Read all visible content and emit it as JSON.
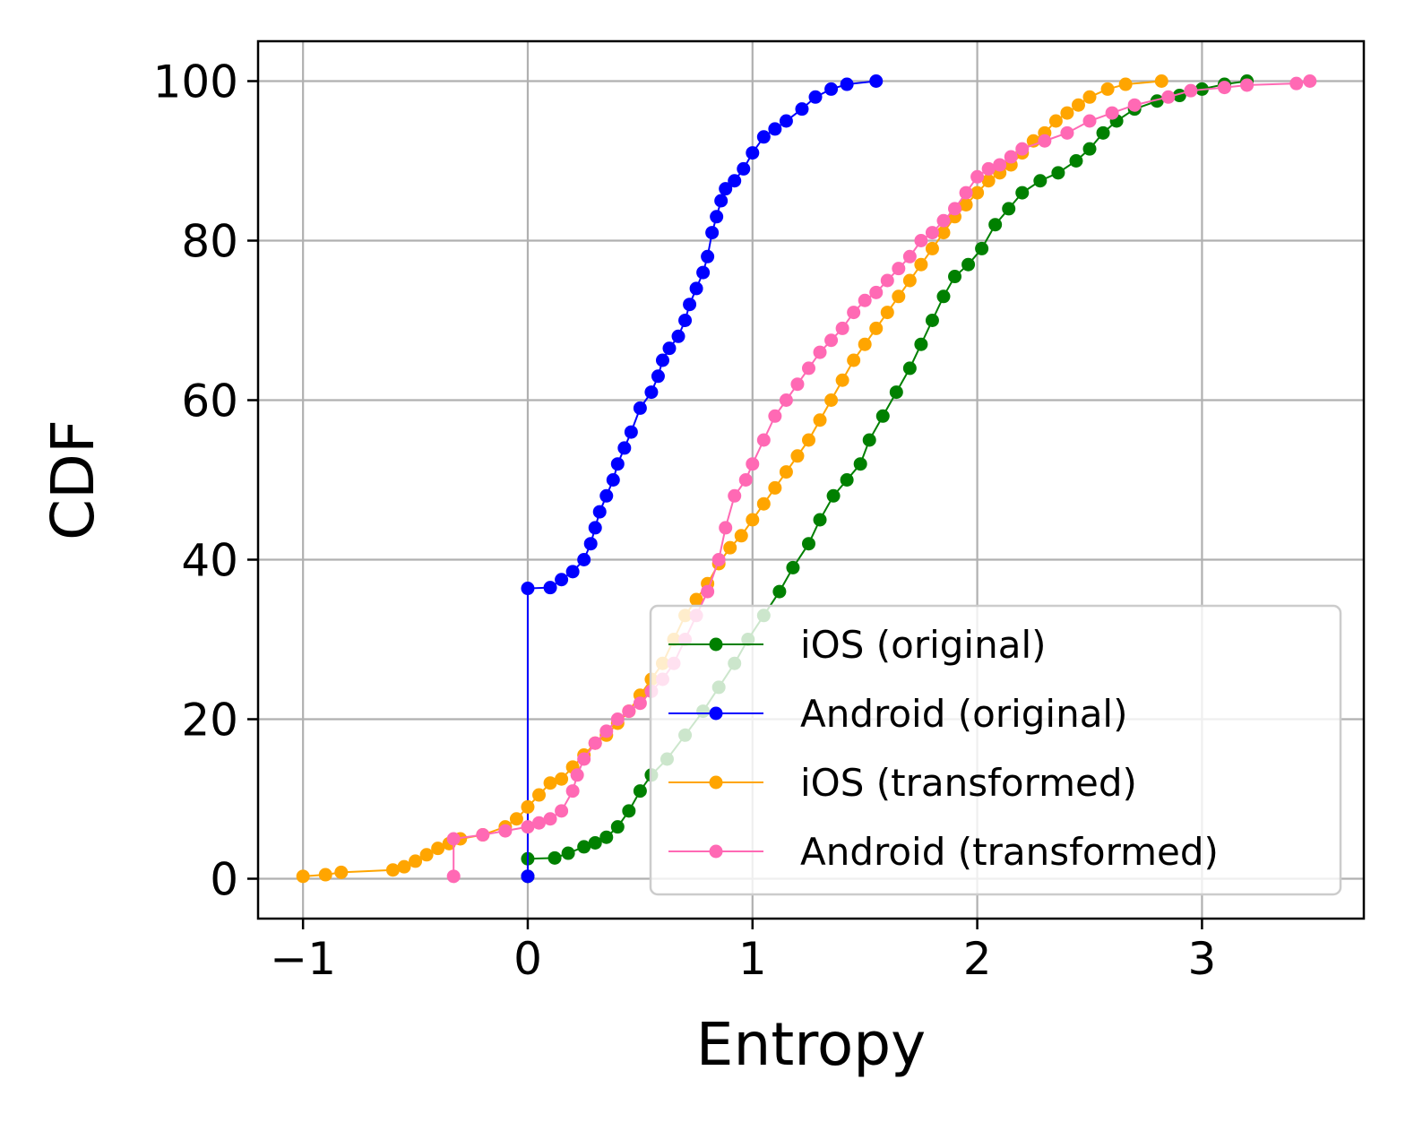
{
  "chart_data": {
    "type": "line",
    "xlabel": "Entropy",
    "ylabel": "CDF",
    "xlim": [
      -1.2,
      3.72
    ],
    "ylim": [
      -5,
      105
    ],
    "xticks": [
      -1,
      0,
      1,
      2,
      3
    ],
    "xtick_labels": [
      "−1",
      "0",
      "1",
      "2",
      "3"
    ],
    "yticks": [
      0,
      20,
      40,
      60,
      80,
      100
    ],
    "ytick_labels": [
      "0",
      "20",
      "40",
      "60",
      "80",
      "100"
    ],
    "grid": true,
    "legend_position": "lower-right",
    "series": [
      {
        "name": "iOS (original)",
        "color": "#008000",
        "points": [
          [
            0,
            0.3
          ],
          [
            0,
            2.5
          ],
          [
            0.12,
            2.6
          ],
          [
            0.18,
            3.2
          ],
          [
            0.25,
            4.0
          ],
          [
            0.3,
            4.5
          ],
          [
            0.35,
            5.2
          ],
          [
            0.4,
            6.5
          ],
          [
            0.45,
            8.5
          ],
          [
            0.5,
            11.0
          ],
          [
            0.55,
            13.0
          ],
          [
            0.62,
            15.0
          ],
          [
            0.7,
            18.0
          ],
          [
            0.78,
            21.0
          ],
          [
            0.85,
            24.0
          ],
          [
            0.92,
            27.0
          ],
          [
            0.98,
            30.0
          ],
          [
            1.05,
            33.0
          ],
          [
            1.12,
            36.0
          ],
          [
            1.18,
            39.0
          ],
          [
            1.25,
            42.0
          ],
          [
            1.3,
            45.0
          ],
          [
            1.36,
            48.0
          ],
          [
            1.42,
            50.0
          ],
          [
            1.48,
            52.0
          ],
          [
            1.52,
            55.0
          ],
          [
            1.58,
            58.0
          ],
          [
            1.64,
            61.0
          ],
          [
            1.7,
            64.0
          ],
          [
            1.75,
            67.0
          ],
          [
            1.8,
            70.0
          ],
          [
            1.85,
            73.0
          ],
          [
            1.9,
            75.5
          ],
          [
            1.96,
            77.0
          ],
          [
            2.02,
            79.0
          ],
          [
            2.08,
            82.0
          ],
          [
            2.14,
            84.0
          ],
          [
            2.2,
            86.0
          ],
          [
            2.28,
            87.5
          ],
          [
            2.36,
            88.5
          ],
          [
            2.44,
            90.0
          ],
          [
            2.5,
            91.5
          ],
          [
            2.56,
            93.5
          ],
          [
            2.62,
            95.0
          ],
          [
            2.7,
            96.5
          ],
          [
            2.8,
            97.5
          ],
          [
            2.9,
            98.2
          ],
          [
            3.0,
            99.0
          ],
          [
            3.1,
            99.6
          ],
          [
            3.2,
            100
          ]
        ]
      },
      {
        "name": "Android (original)",
        "color": "#0000ff",
        "points": [
          [
            0,
            0.3
          ],
          [
            0,
            36.4
          ],
          [
            0.1,
            36.5
          ],
          [
            0.15,
            37.5
          ],
          [
            0.2,
            38.5
          ],
          [
            0.25,
            40.0
          ],
          [
            0.28,
            42.0
          ],
          [
            0.3,
            44.0
          ],
          [
            0.32,
            46.0
          ],
          [
            0.35,
            48.0
          ],
          [
            0.38,
            50.0
          ],
          [
            0.4,
            52.0
          ],
          [
            0.43,
            54.0
          ],
          [
            0.46,
            56.0
          ],
          [
            0.5,
            59.0
          ],
          [
            0.55,
            61.0
          ],
          [
            0.58,
            63.0
          ],
          [
            0.6,
            65.0
          ],
          [
            0.63,
            66.5
          ],
          [
            0.67,
            68.0
          ],
          [
            0.7,
            70.0
          ],
          [
            0.72,
            72.0
          ],
          [
            0.75,
            74.0
          ],
          [
            0.78,
            76.0
          ],
          [
            0.8,
            78.0
          ],
          [
            0.82,
            81.0
          ],
          [
            0.84,
            83.0
          ],
          [
            0.86,
            85.0
          ],
          [
            0.88,
            86.5
          ],
          [
            0.92,
            87.5
          ],
          [
            0.96,
            89.0
          ],
          [
            1.0,
            91.0
          ],
          [
            1.05,
            93.0
          ],
          [
            1.1,
            94.0
          ],
          [
            1.15,
            95.0
          ],
          [
            1.22,
            96.5
          ],
          [
            1.28,
            98.0
          ],
          [
            1.35,
            99.0
          ],
          [
            1.42,
            99.6
          ],
          [
            1.55,
            100
          ]
        ]
      },
      {
        "name": "iOS (transformed)",
        "color": "#ffa500",
        "points": [
          [
            -1,
            0.3
          ],
          [
            -0.9,
            0.5
          ],
          [
            -0.83,
            0.8
          ],
          [
            -0.6,
            1.1
          ],
          [
            -0.55,
            1.5
          ],
          [
            -0.5,
            2.2
          ],
          [
            -0.45,
            3.0
          ],
          [
            -0.4,
            3.8
          ],
          [
            -0.35,
            4.4
          ],
          [
            -0.3,
            5.0
          ],
          [
            -0.2,
            5.5
          ],
          [
            -0.1,
            6.5
          ],
          [
            -0.05,
            7.5
          ],
          [
            0,
            9.0
          ],
          [
            0.05,
            10.5
          ],
          [
            0.1,
            12.0
          ],
          [
            0.15,
            12.5
          ],
          [
            0.2,
            14.0
          ],
          [
            0.25,
            15.5
          ],
          [
            0.3,
            17.0
          ],
          [
            0.35,
            18.0
          ],
          [
            0.4,
            19.5
          ],
          [
            0.45,
            21.0
          ],
          [
            0.5,
            23.0
          ],
          [
            0.55,
            25.0
          ],
          [
            0.6,
            27.0
          ],
          [
            0.65,
            30.0
          ],
          [
            0.7,
            33.0
          ],
          [
            0.75,
            35.0
          ],
          [
            0.8,
            37.0
          ],
          [
            0.85,
            39.5
          ],
          [
            0.9,
            41.5
          ],
          [
            0.95,
            43.0
          ],
          [
            1.0,
            45.0
          ],
          [
            1.05,
            47.0
          ],
          [
            1.1,
            49.0
          ],
          [
            1.15,
            51.0
          ],
          [
            1.2,
            53.0
          ],
          [
            1.25,
            55.0
          ],
          [
            1.3,
            57.5
          ],
          [
            1.35,
            60.0
          ],
          [
            1.4,
            62.5
          ],
          [
            1.45,
            65.0
          ],
          [
            1.5,
            67.0
          ],
          [
            1.55,
            69.0
          ],
          [
            1.6,
            71.0
          ],
          [
            1.65,
            73.0
          ],
          [
            1.7,
            75.0
          ],
          [
            1.75,
            77.0
          ],
          [
            1.8,
            79.0
          ],
          [
            1.85,
            81.0
          ],
          [
            1.9,
            83.0
          ],
          [
            1.95,
            84.5
          ],
          [
            2.0,
            86.0
          ],
          [
            2.05,
            87.5
          ],
          [
            2.1,
            88.5
          ],
          [
            2.15,
            89.5
          ],
          [
            2.2,
            91.0
          ],
          [
            2.25,
            92.5
          ],
          [
            2.3,
            93.5
          ],
          [
            2.35,
            95.0
          ],
          [
            2.4,
            96.0
          ],
          [
            2.45,
            97.0
          ],
          [
            2.5,
            98.0
          ],
          [
            2.58,
            99.0
          ],
          [
            2.66,
            99.6
          ],
          [
            2.82,
            100
          ]
        ]
      },
      {
        "name": "Android (transformed)",
        "color": "#ff69b4",
        "points": [
          [
            -0.33,
            0.3
          ],
          [
            -0.33,
            5.0
          ],
          [
            -0.2,
            5.5
          ],
          [
            -0.1,
            6.0
          ],
          [
            0,
            6.5
          ],
          [
            0.05,
            7.0
          ],
          [
            0.1,
            7.5
          ],
          [
            0.15,
            8.5
          ],
          [
            0.2,
            11.0
          ],
          [
            0.22,
            13.0
          ],
          [
            0.25,
            15.0
          ],
          [
            0.3,
            17.0
          ],
          [
            0.35,
            18.5
          ],
          [
            0.4,
            20.0
          ],
          [
            0.45,
            21.0
          ],
          [
            0.5,
            22.0
          ],
          [
            0.55,
            23.5
          ],
          [
            0.6,
            25.0
          ],
          [
            0.65,
            27.0
          ],
          [
            0.7,
            30.0
          ],
          [
            0.75,
            33.0
          ],
          [
            0.8,
            36.0
          ],
          [
            0.85,
            40.0
          ],
          [
            0.88,
            44.0
          ],
          [
            0.92,
            48.0
          ],
          [
            0.97,
            50.0
          ],
          [
            1.0,
            52.0
          ],
          [
            1.05,
            55.0
          ],
          [
            1.1,
            58.0
          ],
          [
            1.15,
            60.0
          ],
          [
            1.2,
            62.0
          ],
          [
            1.25,
            64.0
          ],
          [
            1.3,
            66.0
          ],
          [
            1.35,
            67.5
          ],
          [
            1.4,
            69.0
          ],
          [
            1.45,
            71.0
          ],
          [
            1.5,
            72.5
          ],
          [
            1.55,
            73.5
          ],
          [
            1.6,
            75.0
          ],
          [
            1.65,
            76.5
          ],
          [
            1.7,
            78.0
          ],
          [
            1.75,
            80.0
          ],
          [
            1.8,
            81.0
          ],
          [
            1.85,
            82.5
          ],
          [
            1.9,
            84.0
          ],
          [
            1.95,
            86.0
          ],
          [
            2.0,
            88.0
          ],
          [
            2.05,
            89.0
          ],
          [
            2.1,
            89.5
          ],
          [
            2.15,
            90.5
          ],
          [
            2.2,
            91.5
          ],
          [
            2.3,
            92.5
          ],
          [
            2.4,
            93.5
          ],
          [
            2.5,
            95.0
          ],
          [
            2.6,
            96.0
          ],
          [
            2.7,
            97.0
          ],
          [
            2.85,
            98.0
          ],
          [
            2.95,
            98.8
          ],
          [
            3.1,
            99.2
          ],
          [
            3.2,
            99.5
          ],
          [
            3.42,
            99.7
          ],
          [
            3.48,
            100
          ]
        ]
      }
    ]
  }
}
